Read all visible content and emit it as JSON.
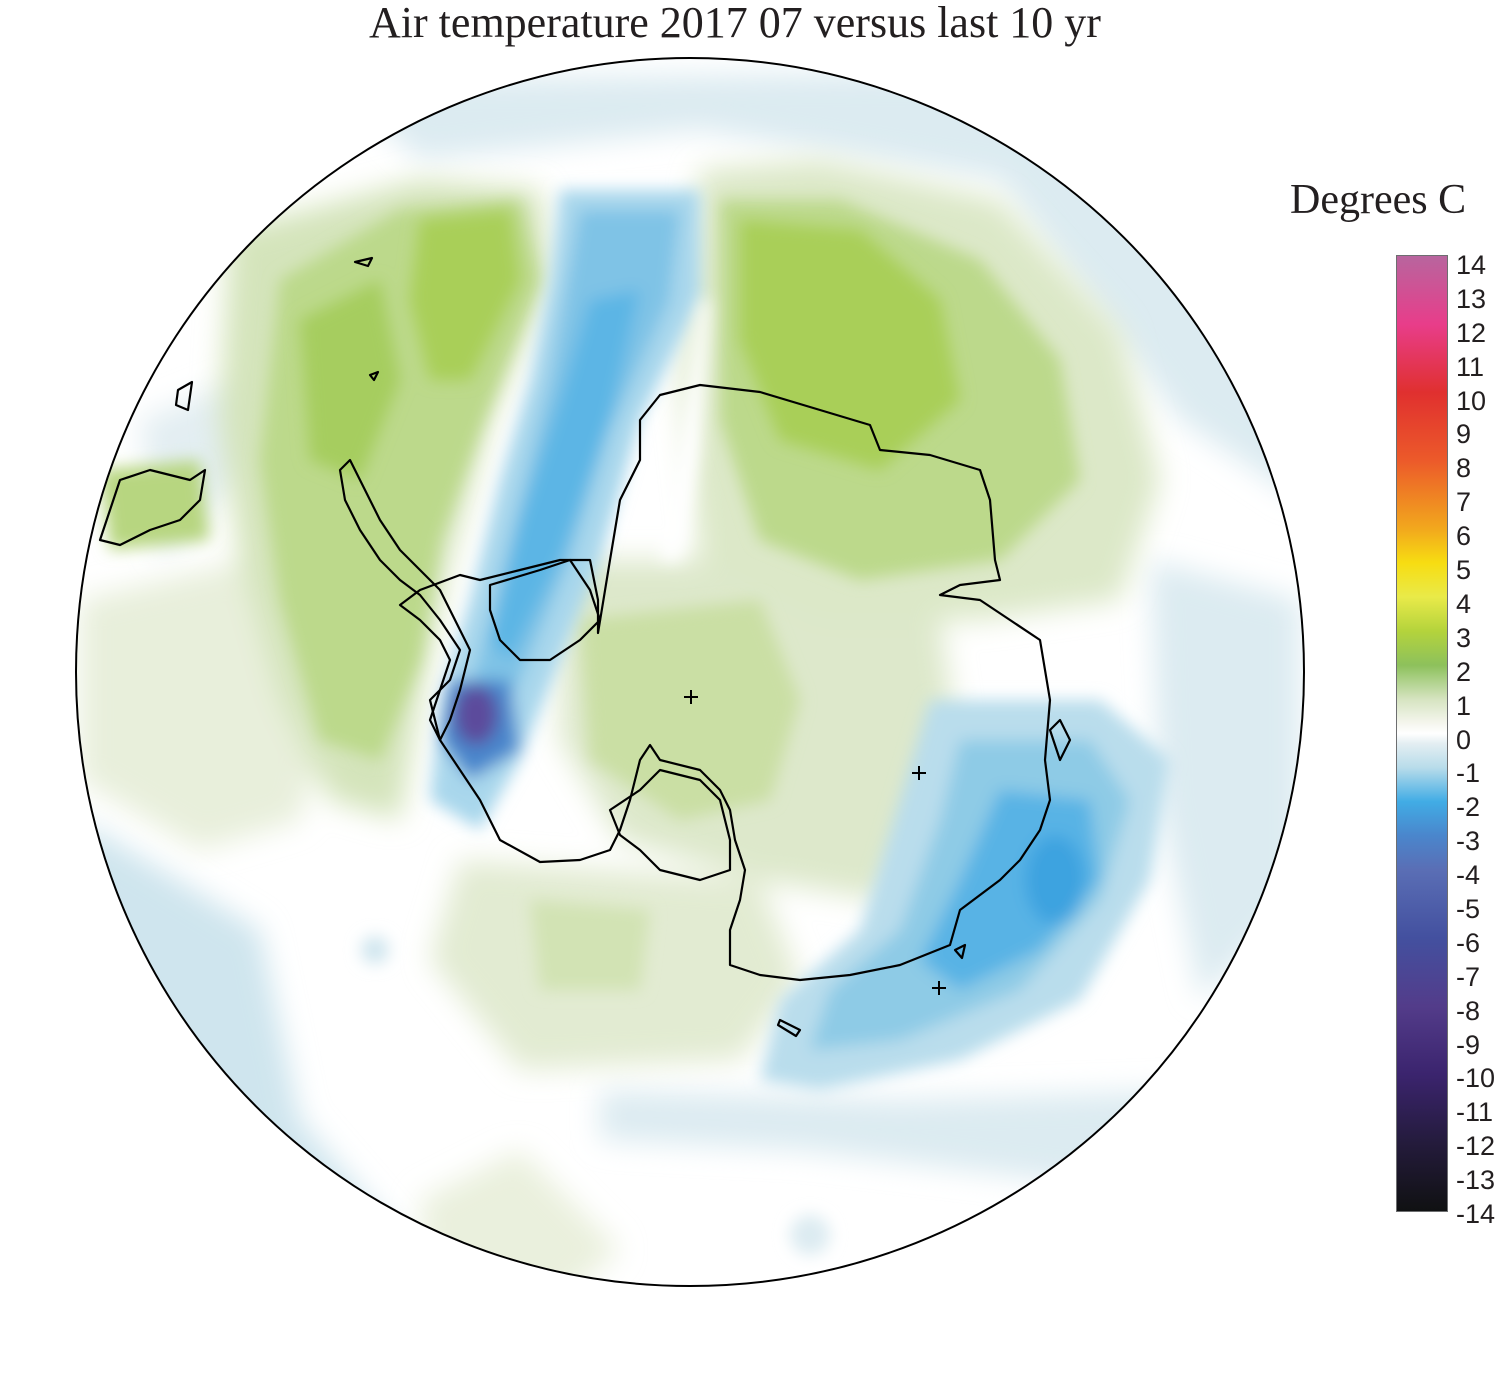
{
  "title": "Air temperature 2017 07 versus last 10 yr",
  "legend": {
    "title": "Degrees C",
    "ticks": [
      "14",
      "13",
      "12",
      "11",
      "10",
      "9",
      "8",
      "7",
      "6",
      "5",
      "4",
      "3",
      "2",
      "1",
      "0",
      "-1",
      "-2",
      "-3",
      "-4",
      "-5",
      "-6",
      "-7",
      "-8",
      "-9",
      "-10",
      "-11",
      "-12",
      "-13",
      "-14"
    ],
    "color_stops": [
      {
        "value": 14,
        "color": "#b8659e"
      },
      {
        "value": 12,
        "color": "#e83d8a"
      },
      {
        "value": 10,
        "color": "#e0302f"
      },
      {
        "value": 8,
        "color": "#ec5a2a"
      },
      {
        "value": 6,
        "color": "#f2a81d"
      },
      {
        "value": 5,
        "color": "#f7dd12"
      },
      {
        "value": 4,
        "color": "#e9ea49"
      },
      {
        "value": 3,
        "color": "#b4d33c"
      },
      {
        "value": 2,
        "color": "#8dc15c"
      },
      {
        "value": 1,
        "color": "#d6e4c1"
      },
      {
        "value": 0.3,
        "color": "#f5f6ee"
      },
      {
        "value": 0,
        "color": "#ffffff"
      },
      {
        "value": -0.3,
        "color": "#e3eef2"
      },
      {
        "value": -1,
        "color": "#b8dcea"
      },
      {
        "value": -2,
        "color": "#41ace5"
      },
      {
        "value": -3,
        "color": "#4a86cc"
      },
      {
        "value": -4,
        "color": "#5a6eb5"
      },
      {
        "value": -6,
        "color": "#43509f"
      },
      {
        "value": -8,
        "color": "#533c8a"
      },
      {
        "value": -10,
        "color": "#3b246e"
      },
      {
        "value": -12,
        "color": "#241b3c"
      },
      {
        "value": -14,
        "color": "#101112"
      }
    ]
  },
  "map": {
    "projection": "south polar stereographic",
    "region": "Antarctica and Southern Ocean",
    "colors": {
      "green_strong": "#a9cf59",
      "green_mid": "#c3dc95",
      "green_light": "#d9e7c3",
      "green_pale": "#eaf0dd",
      "blue_pale": "#dcebf1",
      "blue_light": "#bfe0ec",
      "blue_mid": "#8fcbe6",
      "blue_strong": "#4fb1e6",
      "blue_deep": "#3f8fd4",
      "purple": "#5c4c9c",
      "coastline": "#000000"
    }
  }
}
